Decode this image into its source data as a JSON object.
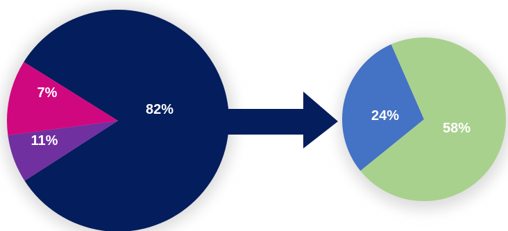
{
  "chart_data": [
    {
      "type": "pie",
      "slices": [
        {
          "label": "82%",
          "value": 82,
          "color": "#041d5c"
        },
        {
          "label": "7%",
          "value": 7,
          "color": "#7030a0"
        },
        {
          "label": "11%",
          "value": 11,
          "color": "#d0087f"
        }
      ]
    },
    {
      "type": "pie",
      "slices": [
        {
          "label": "24%",
          "value": 24,
          "color": "#4472c4"
        },
        {
          "label": "58%",
          "value": 58,
          "color": "#a9d18e"
        }
      ]
    }
  ],
  "arrow_color": "#041d5c",
  "shadow_color": "#d9d9d9"
}
